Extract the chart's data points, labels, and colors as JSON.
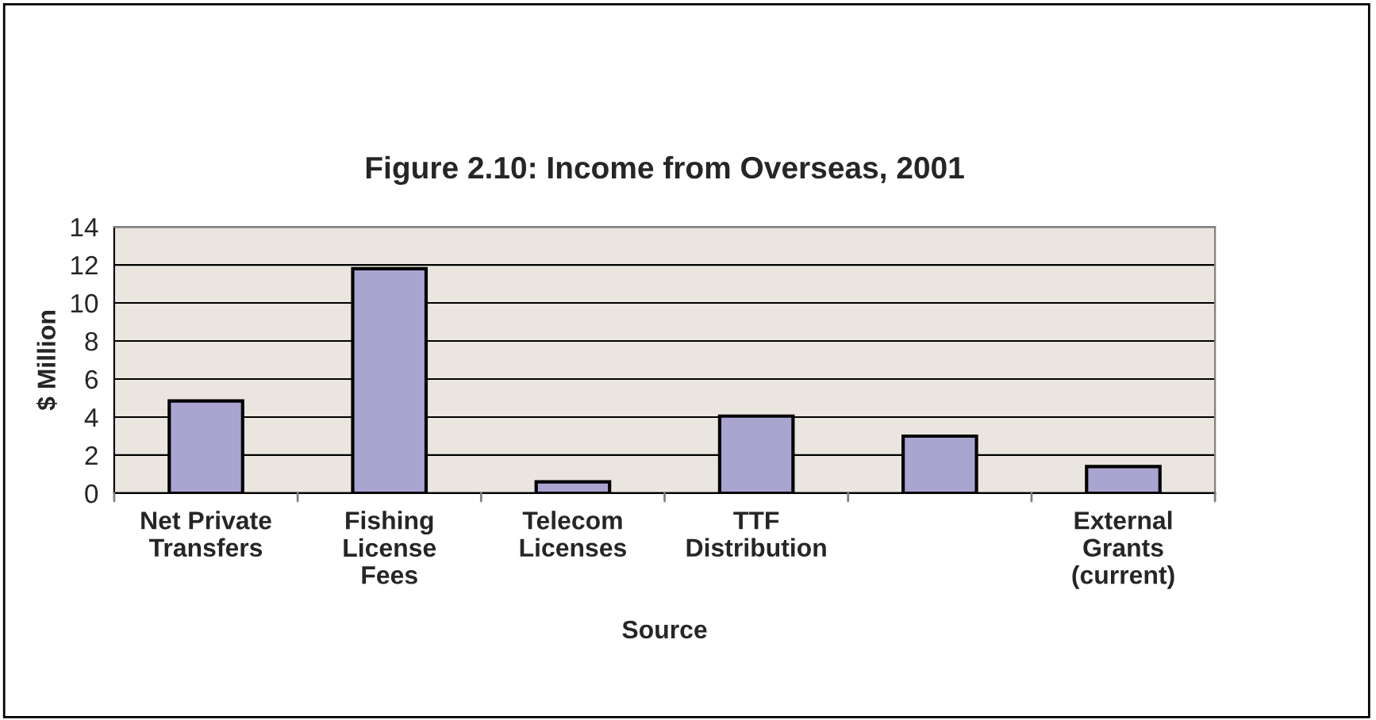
{
  "chart_data": {
    "type": "bar",
    "title": "Figure 2.10: Income from Overseas, 2001",
    "xlabel": "Source",
    "ylabel": "$ Million",
    "categories": [
      "Net Private\nTransfers",
      "Fishing\nLicense\nFees",
      "Telecom\nLicenses",
      "TTF\nDistribution",
      null,
      "External\nGrants\n(current)"
    ],
    "values": [
      4.85,
      11.8,
      0.6,
      4.05,
      3.0,
      1.4
    ],
    "color": "#a9a4d0",
    "ylim": [
      0,
      14
    ],
    "yticks": [
      0,
      2,
      4,
      6,
      8,
      10,
      12,
      14
    ],
    "grid": "y",
    "legend": false
  }
}
